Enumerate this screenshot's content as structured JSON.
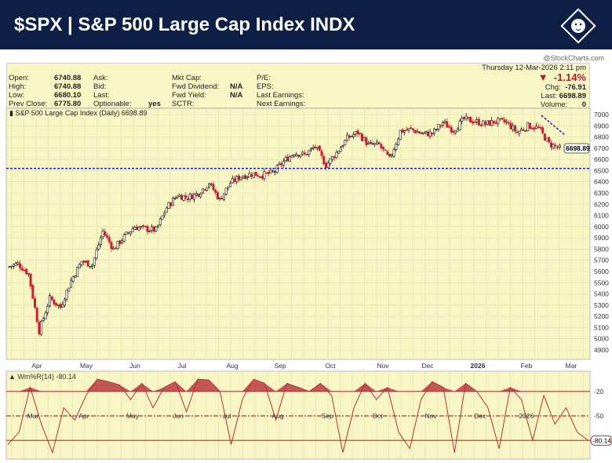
{
  "header": {
    "title": "$SPX | S&P 500 Large Cap Index INDX",
    "logo": "lion-logo"
  },
  "copyright": "@StockCharts.com",
  "info": {
    "col1": [
      [
        "Open:",
        "6740.88"
      ],
      [
        "High:",
        "6740.88"
      ],
      [
        "Low:",
        "6680.10"
      ],
      [
        "Prev Close:",
        "6775.80"
      ]
    ],
    "col2": [
      [
        "Ask:",
        ""
      ],
      [
        "Bid:",
        ""
      ],
      [
        "Last:",
        ""
      ],
      [
        "Optionable:",
        "yes"
      ]
    ],
    "col3": [
      [
        "Mkt Cap:",
        ""
      ],
      [
        "Fwd Dividend:",
        "N/A"
      ],
      [
        "Fwd Yield:",
        "N/A"
      ],
      [
        "SCTR:",
        ""
      ]
    ],
    "col4": [
      [
        "P/E:",
        ""
      ],
      [
        "EPS:",
        ""
      ],
      [
        "Last Earnings:",
        ""
      ],
      [
        "Next Earnings:",
        ""
      ]
    ],
    "date": "Thursday  12-Mar-2026  2:11 pm",
    "pct_change": "-1.14%",
    "chg_label": "Chg:",
    "chg": "-76.91",
    "last_label": "Last:",
    "last": "6698.89",
    "volume_label": "Volume:",
    "volume": "0"
  },
  "colors": {
    "up": "#111111",
    "down": "#cc1f2f",
    "panel": "#f8f6c4",
    "support": "#1a1acc",
    "header": "#0e1f45",
    "indicator": "#b5303b"
  },
  "chart_data": [
    {
      "type": "candlestick",
      "title": "S&P 500 Large Cap Index (Daily) 6698.89",
      "last_label": "6698.89",
      "ylim": [
        4800,
        7050
      ],
      "yticks": [
        4900,
        5000,
        5100,
        5200,
        5300,
        5400,
        5500,
        5600,
        5700,
        5800,
        5900,
        6000,
        6100,
        6200,
        6300,
        6400,
        6500,
        6600,
        6700,
        6800,
        6900,
        7000
      ],
      "xticks": [
        "Apr",
        "May",
        "Jun",
        "Jul",
        "Aug",
        "Sep",
        "Oct",
        "Nov",
        "Dec",
        "2026",
        "Feb",
        "Mar"
      ],
      "weekly_closes": [
        5640,
        5670,
        5580,
        5070,
        5360,
        5280,
        5520,
        5690,
        5660,
        5960,
        5800,
        5910,
        6000,
        5980,
        5970,
        6170,
        6280,
        6260,
        6300,
        6390,
        6240,
        6390,
        6450,
        6470,
        6460,
        6480,
        6580,
        6660,
        6640,
        6715,
        6550,
        6660,
        6790,
        6840,
        6730,
        6730,
        6600,
        6850,
        6870,
        6830,
        6830,
        6930,
        6860,
        6960,
        6940,
        6915,
        6940,
        6930,
        6840,
        6900,
        6880,
        6740,
        6699
      ],
      "support_level": 6520,
      "grid": true
    },
    {
      "type": "line",
      "title": "Wm%R(14) -80.14",
      "last_label": "-80.14",
      "ylim": [
        -100,
        0
      ],
      "levels": [
        -20,
        -50,
        -80
      ],
      "xticks": [
        "Mar",
        "Apr",
        "May",
        "Jun",
        "Jul",
        "Aug",
        "Sep",
        "Oct",
        "Nov",
        "Dec",
        "2026",
        "Feb"
      ],
      "values": [
        -85,
        -70,
        -15,
        -60,
        -95,
        -40,
        -55,
        -25,
        -5,
        -8,
        -12,
        -30,
        -10,
        -40,
        -15,
        -8,
        -45,
        -5,
        -6,
        -20,
        -85,
        -30,
        -5,
        -10,
        -55,
        -10,
        -15,
        -20,
        -10,
        -25,
        -95,
        -40,
        -10,
        -30,
        -15,
        -70,
        -90,
        -30,
        -8,
        -15,
        -95,
        -10,
        -20,
        -40,
        -90,
        -15,
        -30,
        -80,
        -25,
        -60,
        -40,
        -70,
        -80.14
      ]
    }
  ]
}
